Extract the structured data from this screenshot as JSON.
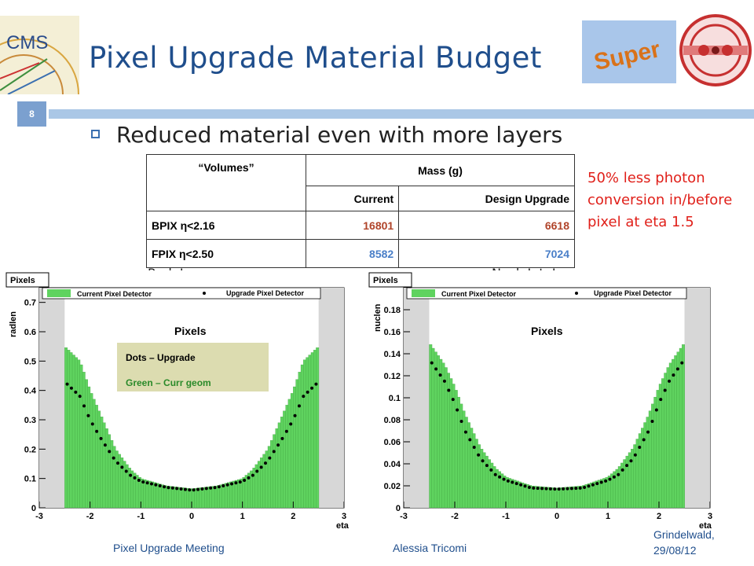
{
  "slide": {
    "title": "Pixel Upgrade Material Budget",
    "page_number": "8",
    "bullet": "Reduced material even with more layers",
    "note": "50% less photon conversion in/before pixel at eta 1.5",
    "caption_left": "Rad. Len.",
    "caption_right": "Nucl. Int. Len.",
    "footer_meeting": "Pixel Upgrade Meeting",
    "footer_author": "Alessia Tricomi",
    "footer_place": "Grindelwald, 29/08/12",
    "logo_super_text": "Super",
    "logo_cms_text": "CMS"
  },
  "table": {
    "head_volumes": "“Volumes”",
    "head_mass": "Mass (g)",
    "head_current": "Current",
    "head_design": "Design Upgrade",
    "rows": [
      {
        "label": "BPIX η<2.16",
        "current": "16801",
        "design": "6618"
      },
      {
        "label": "FPIX η<2.50",
        "current": "8582",
        "design": "7024"
      }
    ]
  },
  "colors": {
    "title_blue": "#1f4e8c",
    "note_red": "#e0201a",
    "bpix_current": "#b0442a",
    "fpix_values": "#4a7fc8",
    "hist_green": "#5fd35f",
    "legend_box": "#dcdcb0"
  },
  "chart_data": [
    {
      "type": "bar",
      "panel_label": "Pixels",
      "inner_title": "Pixels",
      "xlabel": "eta",
      "ylabel": "radlen",
      "xlim": [
        -3,
        3
      ],
      "ylim": [
        0,
        0.75
      ],
      "xticks": [
        "-3",
        "-2",
        "-1",
        "0",
        "1",
        "2",
        "3"
      ],
      "yticks": [
        "0",
        "0.1",
        "0.2",
        "0.3",
        "0.4",
        "0.5",
        "0.6",
        "0.7"
      ],
      "legend": [
        "Current Pixel Detector",
        "Upgrade Pixel Detector"
      ],
      "annotation": [
        "Dots – Upgrade",
        "Green – Curr geom"
      ],
      "x": [
        -2.5,
        -2.2,
        -2.0,
        -1.8,
        -1.5,
        -1.2,
        -1.0,
        -0.5,
        0.0,
        0.5,
        1.0,
        1.2,
        1.5,
        1.8,
        2.0,
        2.2,
        2.5
      ],
      "series": [
        {
          "name": "Current Pixel Detector",
          "values": [
            0.55,
            0.5,
            0.4,
            0.32,
            0.2,
            0.13,
            0.1,
            0.075,
            0.065,
            0.075,
            0.1,
            0.13,
            0.2,
            0.32,
            0.4,
            0.5,
            0.55
          ]
        },
        {
          "name": "Upgrade Pixel Detector",
          "values": [
            0.43,
            0.38,
            0.3,
            0.24,
            0.16,
            0.11,
            0.09,
            0.07,
            0.06,
            0.07,
            0.09,
            0.11,
            0.16,
            0.24,
            0.3,
            0.38,
            0.43
          ]
        }
      ]
    },
    {
      "type": "bar",
      "panel_label": "Pixels",
      "inner_title": "Pixels",
      "xlabel": "eta",
      "ylabel": "nuclen",
      "xlim": [
        -3,
        3
      ],
      "ylim": [
        0,
        0.2
      ],
      "xticks": [
        "-3",
        "-2",
        "-1",
        "0",
        "1",
        "2",
        "3"
      ],
      "yticks": [
        "0",
        "0.02",
        "0.04",
        "0.06",
        "0.08",
        "0.1",
        "0.12",
        "0.14",
        "0.16",
        "0.18"
      ],
      "legend": [
        "Current Pixel Detector",
        "Upgrade Pixel Detector"
      ],
      "x": [
        -2.5,
        -2.2,
        -2.0,
        -1.8,
        -1.5,
        -1.2,
        -1.0,
        -0.5,
        0.0,
        0.5,
        1.0,
        1.2,
        1.5,
        1.8,
        2.0,
        2.2,
        2.5
      ],
      "series": [
        {
          "name": "Current Pixel Detector",
          "values": [
            0.15,
            0.13,
            0.11,
            0.085,
            0.055,
            0.036,
            0.028,
            0.02,
            0.018,
            0.02,
            0.028,
            0.036,
            0.055,
            0.085,
            0.11,
            0.13,
            0.15
          ]
        },
        {
          "name": "Upgrade Pixel Detector",
          "values": [
            0.135,
            0.115,
            0.095,
            0.07,
            0.045,
            0.03,
            0.025,
            0.018,
            0.017,
            0.018,
            0.025,
            0.03,
            0.045,
            0.07,
            0.095,
            0.115,
            0.135
          ]
        }
      ]
    }
  ]
}
